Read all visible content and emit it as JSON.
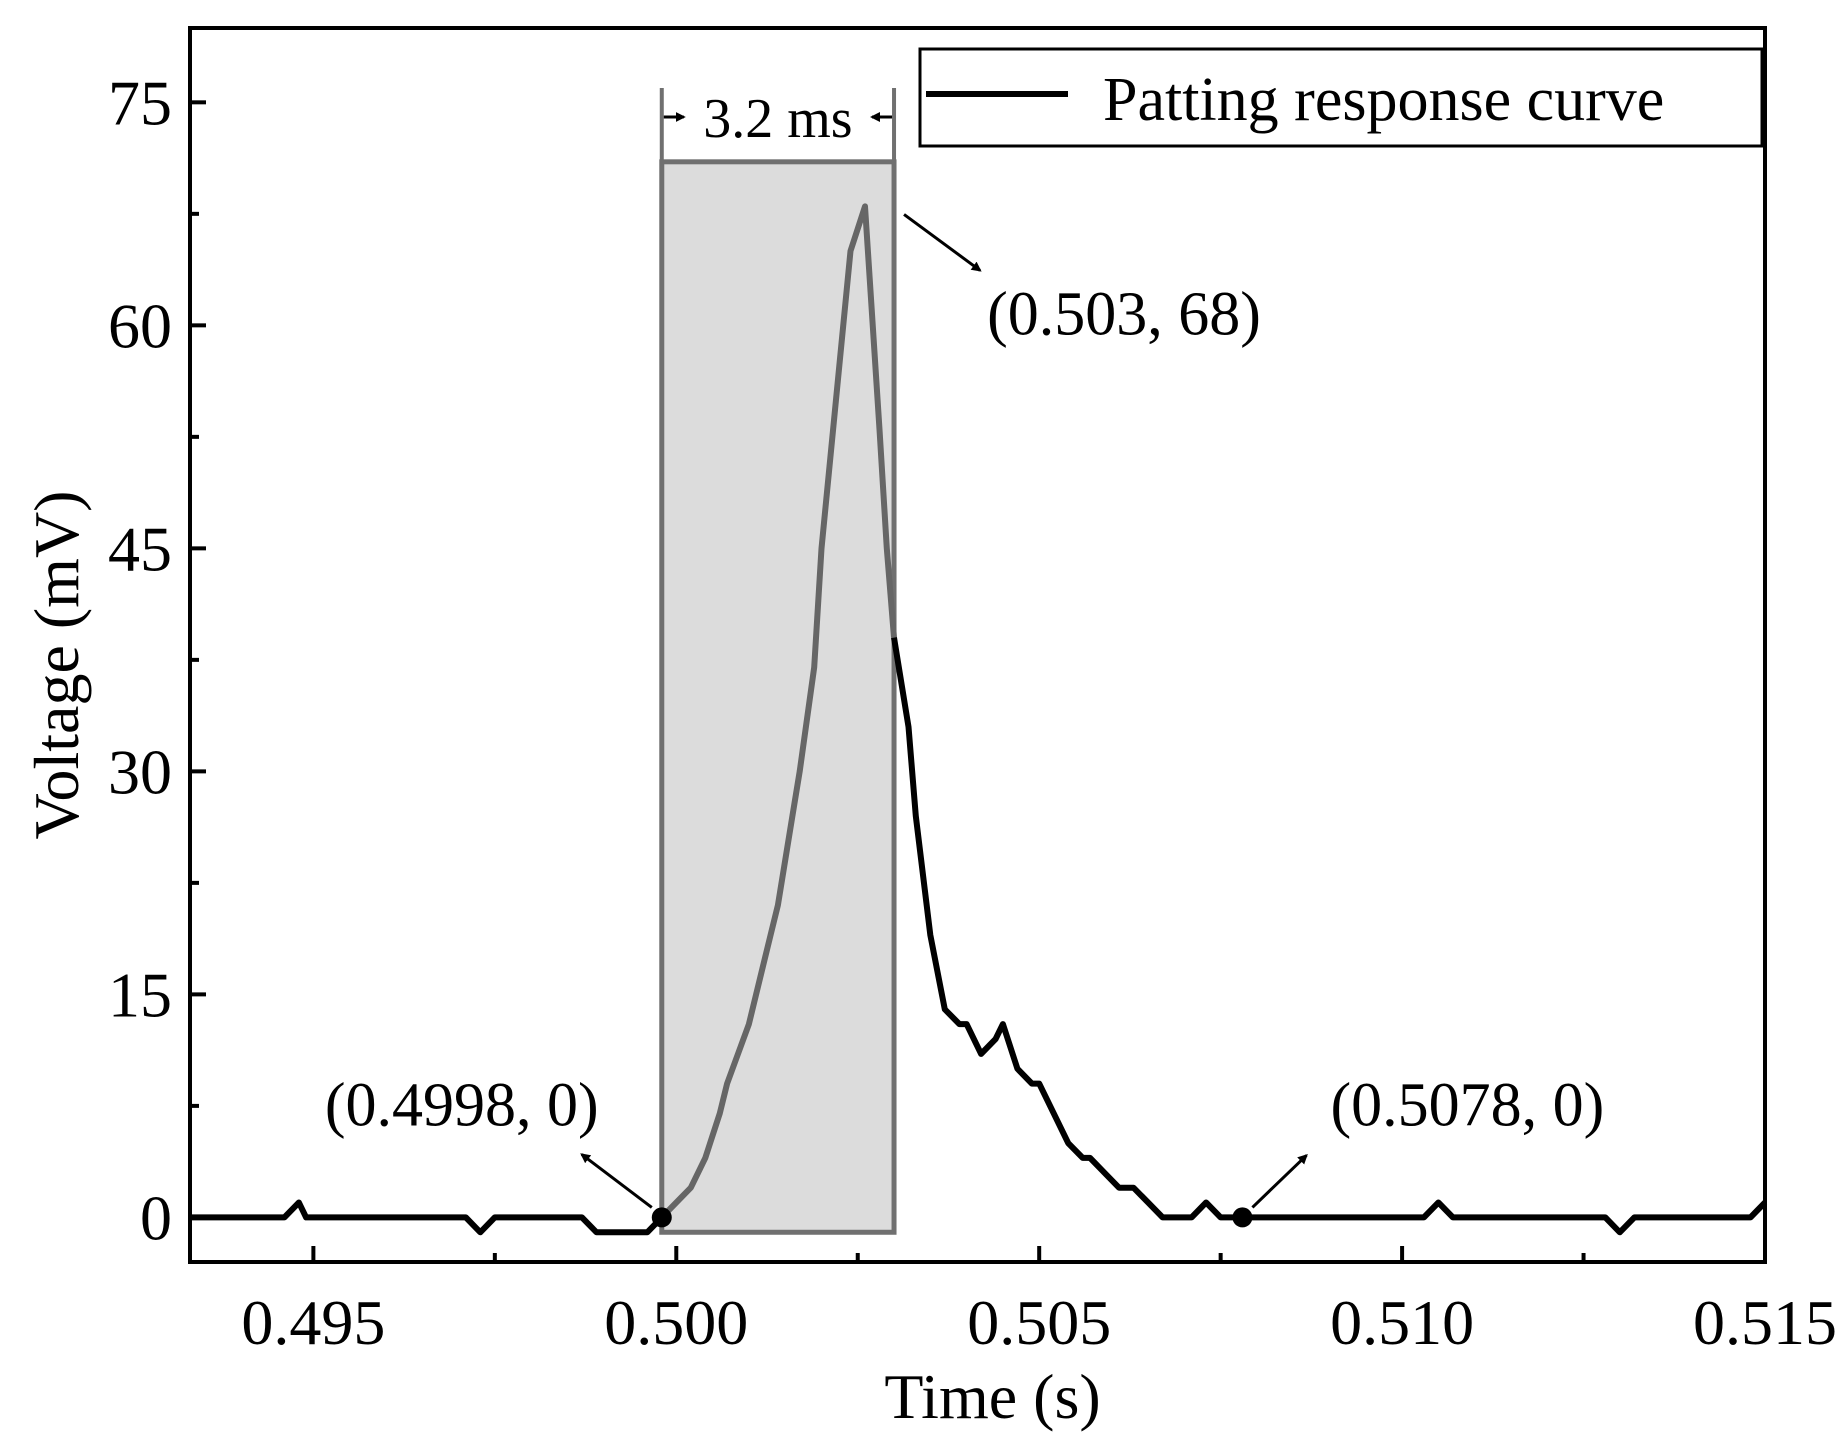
{
  "chart_data": {
    "type": "line",
    "title": "",
    "xlabel": "Time (s)",
    "ylabel": "Voltage (mV)",
    "xlim": [
      0.4933,
      0.515
    ],
    "ylim": [
      -3,
      80
    ],
    "xticks": [
      0.495,
      0.5,
      0.505,
      0.51,
      0.515
    ],
    "xtick_labels": [
      "0.495",
      "0.500",
      "0.505",
      "0.510",
      "0.515"
    ],
    "yticks": [
      0,
      15,
      30,
      45,
      60,
      75
    ],
    "ytick_labels": [
      "0",
      "15",
      "30",
      "45",
      "60",
      "75"
    ],
    "grid": false,
    "legend": {
      "position": "top-right",
      "entries": [
        "Patting response curve"
      ]
    },
    "series": [
      {
        "name": "Patting response curve",
        "color": "#000000",
        "x": [
          0.4933,
          0.4946,
          0.4948,
          0.4949,
          0.4971,
          0.4973,
          0.4975,
          0.4985,
          0.4987,
          0.4989,
          0.4996,
          0.4998,
          0.5,
          0.5002,
          0.5004,
          0.5006,
          0.5007,
          0.501,
          0.5011,
          0.5013,
          0.5014,
          0.5016,
          0.5017,
          0.5019,
          0.502,
          0.5022,
          0.5024,
          0.5026,
          0.5028,
          0.5029,
          0.503,
          0.5032,
          0.5033,
          0.5035,
          0.5037,
          0.5039,
          0.504,
          0.5042,
          0.5044,
          0.5045,
          0.5047,
          0.5049,
          0.505,
          0.5052,
          0.5054,
          0.5056,
          0.5057,
          0.5059,
          0.5061,
          0.5063,
          0.5065,
          0.5067,
          0.5069,
          0.5071,
          0.5073,
          0.5075,
          0.5078,
          0.5103,
          0.5105,
          0.5107,
          0.5128,
          0.513,
          0.5132,
          0.5148,
          0.515
        ],
        "y": [
          0,
          0,
          1,
          0,
          0,
          -1,
          0,
          0,
          0,
          -1,
          -1,
          0,
          1,
          2,
          4,
          7,
          9,
          13,
          15,
          19,
          21,
          27,
          30,
          37,
          45,
          55,
          65,
          68,
          53,
          45,
          39,
          33,
          27,
          19,
          14,
          13,
          13,
          11,
          12,
          13,
          10,
          9,
          9,
          7,
          5,
          4,
          4,
          3,
          2,
          2,
          1,
          0,
          0,
          0,
          1,
          0,
          0,
          0,
          1,
          0,
          0,
          -1,
          0,
          0,
          1
        ]
      }
    ],
    "highlight_region": {
      "x_start": 0.4998,
      "x_end": 0.503,
      "y_bottom": -1,
      "y_top": 71,
      "fill": "#dcdcdc",
      "stroke": "#707070"
    },
    "annotations": [
      {
        "id": "start",
        "label": "(0.4998, 0)",
        "point": [
          0.4998,
          0
        ]
      },
      {
        "id": "peak",
        "label": "(0.503, 68)",
        "point": [
          0.503,
          68
        ]
      },
      {
        "id": "end",
        "label": "(0.5078, 0)",
        "point": [
          0.5078,
          0
        ]
      }
    ],
    "duration_label": "3.2 ms"
  }
}
